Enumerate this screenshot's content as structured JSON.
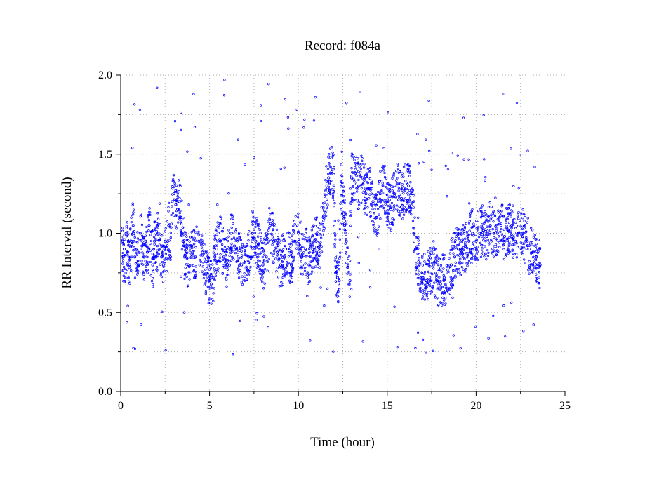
{
  "chart_data": {
    "type": "scatter",
    "title": "Record:  f084a",
    "xlabel": "Time (hour)",
    "ylabel": "RR Interval (second)",
    "xlim": [
      0,
      25
    ],
    "ylim": [
      0.0,
      2.0
    ],
    "xticks": [
      0,
      5,
      10,
      15,
      20,
      25
    ],
    "xtick_labels": [
      "0",
      "5",
      "10",
      "15",
      "20",
      "25"
    ],
    "yticks": [
      0.0,
      0.5,
      1.0,
      1.5,
      2.0
    ],
    "ytick_labels": [
      "0.0",
      "0.5",
      "1.0",
      "1.5",
      "2.0"
    ],
    "grid": true,
    "marker": "open-circle",
    "color": "#0000ff",
    "series": [
      {
        "name": "",
        "x": [
          0.1,
          0.15,
          0.2,
          0.25,
          0.3,
          0.4,
          0.5,
          0.6,
          0.7,
          0.8,
          0.9,
          1.0,
          1.1,
          1.2,
          1.3,
          1.4,
          1.5,
          1.6,
          1.7,
          1.8,
          1.9,
          2.0,
          2.1,
          2.2,
          2.3,
          2.4,
          2.5,
          2.6,
          2.7,
          2.8,
          2.9,
          3.0,
          3.1,
          3.2,
          3.3,
          3.4,
          3.5,
          3.6,
          3.7,
          3.8,
          3.9,
          4.0,
          4.2,
          4.4,
          4.6,
          4.8,
          5.0,
          5.1,
          5.2,
          5.3,
          5.4,
          5.6,
          5.8,
          6.0,
          6.2,
          6.4,
          6.6,
          6.8,
          7.0,
          7.2,
          7.4,
          7.6,
          7.8,
          8.0,
          8.2,
          8.4,
          8.6,
          8.8,
          9.0,
          9.2,
          9.4,
          9.6,
          9.8,
          10.0,
          10.2,
          10.4,
          10.6,
          10.8,
          11.0,
          11.2,
          11.4,
          11.6,
          11.7,
          11.8,
          11.9,
          12.0,
          12.1,
          12.2,
          12.3,
          12.4,
          12.5,
          12.6,
          12.7,
          12.8,
          12.9,
          13.0,
          13.2,
          13.4,
          13.6,
          13.8,
          14.0,
          14.2,
          14.4,
          14.6,
          14.8,
          15.0,
          15.2,
          15.4,
          15.6,
          15.8,
          16.0,
          16.2,
          16.4,
          16.6,
          16.8,
          17.0,
          17.2,
          17.4,
          17.6,
          17.8,
          18.0,
          18.2,
          18.4,
          18.6,
          18.8,
          19.0,
          19.2,
          19.4,
          19.6,
          19.8,
          20.0,
          20.2,
          20.4,
          20.6,
          20.8,
          21.0,
          21.2,
          21.4,
          21.6,
          21.8,
          22.0,
          22.2,
          22.4,
          22.6,
          22.8,
          23.0,
          23.2,
          23.4,
          23.6
        ],
        "y": [
          0.95,
          0.85,
          0.9,
          0.72,
          1.0,
          0.88,
          0.8,
          0.95,
          1.05,
          0.85,
          0.9,
          0.8,
          1.0,
          0.92,
          0.85,
          0.95,
          0.88,
          1.05,
          0.9,
          0.8,
          0.95,
          0.85,
          1.0,
          0.9,
          0.85,
          0.8,
          0.95,
          0.9,
          1.05,
          0.85,
          1.2,
          1.25,
          1.18,
          1.15,
          1.2,
          1.1,
          0.95,
          0.85,
          0.9,
          0.8,
          0.88,
          0.92,
          0.85,
          0.95,
          0.88,
          0.75,
          0.7,
          0.68,
          0.72,
          0.85,
          0.9,
          0.95,
          0.85,
          0.8,
          1.0,
          0.92,
          0.88,
          0.8,
          0.78,
          0.85,
          1.0,
          0.95,
          0.9,
          0.8,
          0.85,
          1.05,
          0.95,
          0.88,
          0.8,
          0.85,
          0.9,
          0.8,
          0.95,
          1.0,
          0.85,
          0.9,
          0.8,
          0.9,
          0.95,
          0.92,
          1.1,
          1.3,
          1.35,
          1.38,
          1.4,
          1.3,
          0.75,
          0.72,
          0.7,
          1.3,
          1.2,
          1.05,
          0.95,
          0.8,
          0.7,
          1.35,
          1.38,
          1.3,
          1.35,
          1.25,
          1.28,
          1.2,
          1.1,
          1.25,
          1.3,
          1.2,
          1.15,
          1.25,
          1.3,
          1.22,
          1.28,
          1.3,
          1.25,
          0.9,
          0.8,
          0.72,
          0.7,
          0.75,
          0.8,
          0.7,
          0.68,
          0.72,
          0.65,
          0.8,
          0.85,
          0.9,
          0.88,
          0.92,
          0.95,
          1.0,
          0.95,
          1.0,
          1.02,
          0.98,
          1.05,
          1.0,
          1.0,
          1.05,
          0.98,
          1.02,
          1.05,
          0.95,
          1.0,
          1.0,
          0.95,
          0.9,
          0.88,
          0.85,
          0.8
        ]
      }
    ]
  }
}
